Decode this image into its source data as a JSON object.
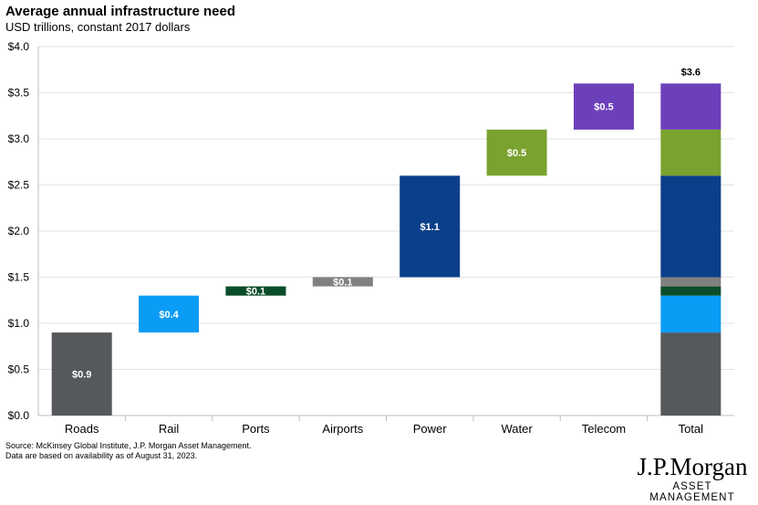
{
  "chart_data": {
    "type": "bar",
    "subtype": "waterfall",
    "title": "Average annual infrastructure need",
    "subtitle": "USD trillions, constant 2017 dollars",
    "categories": [
      "Roads",
      "Rail",
      "Ports",
      "Airports",
      "Power",
      "Water",
      "Telecom",
      "Total"
    ],
    "values": [
      0.9,
      0.4,
      0.1,
      0.1,
      1.1,
      0.5,
      0.5,
      3.6
    ],
    "data_labels": [
      "$0.9",
      "$0.4",
      "$0.1",
      "$0.1",
      "$1.1",
      "$0.5",
      "$0.5",
      "$3.6"
    ],
    "bars": [
      {
        "category": "Roads",
        "start": 0.0,
        "end": 0.9,
        "color": "#55595c"
      },
      {
        "category": "Rail",
        "start": 0.9,
        "end": 1.3,
        "color": "#0b9cf5"
      },
      {
        "category": "Ports",
        "start": 1.3,
        "end": 1.4,
        "color": "#0b4d2a"
      },
      {
        "category": "Airports",
        "start": 1.4,
        "end": 1.5,
        "color": "#808080"
      },
      {
        "category": "Power",
        "start": 1.5,
        "end": 2.6,
        "color": "#0b3f8a"
      },
      {
        "category": "Water",
        "start": 2.6,
        "end": 3.1,
        "color": "#7aa22f"
      },
      {
        "category": "Telecom",
        "start": 3.1,
        "end": 3.6,
        "color": "#6d40bb"
      }
    ],
    "total_stack": [
      {
        "start": 0.0,
        "end": 0.9,
        "color": "#55595c"
      },
      {
        "start": 0.9,
        "end": 1.3,
        "color": "#0b9cf5"
      },
      {
        "start": 1.3,
        "end": 1.4,
        "color": "#0b4d2a"
      },
      {
        "start": 1.4,
        "end": 1.5,
        "color": "#808080"
      },
      {
        "start": 1.5,
        "end": 2.6,
        "color": "#0b3f8a"
      },
      {
        "start": 2.6,
        "end": 3.1,
        "color": "#7aa22f"
      },
      {
        "start": 3.1,
        "end": 3.6,
        "color": "#6d40bb"
      }
    ],
    "yticks": [
      0.0,
      0.5,
      1.0,
      1.5,
      2.0,
      2.5,
      3.0,
      3.5,
      4.0
    ],
    "ytick_labels": [
      "$0.0",
      "$0.5",
      "$1.0",
      "$1.5",
      "$2.0",
      "$2.5",
      "$3.0",
      "$3.5",
      "$4.0"
    ],
    "ylim": [
      0,
      4.0
    ],
    "xlabel": "",
    "ylabel": "",
    "grid": true
  },
  "source_line1": "Source: McKinsey Global Institute, J.P. Morgan Asset Management.",
  "source_line2": "Data are based on availability as of August 31, 2023.",
  "logo_main": "J.P.Morgan",
  "logo_sub": "ASSET MANAGEMENT"
}
